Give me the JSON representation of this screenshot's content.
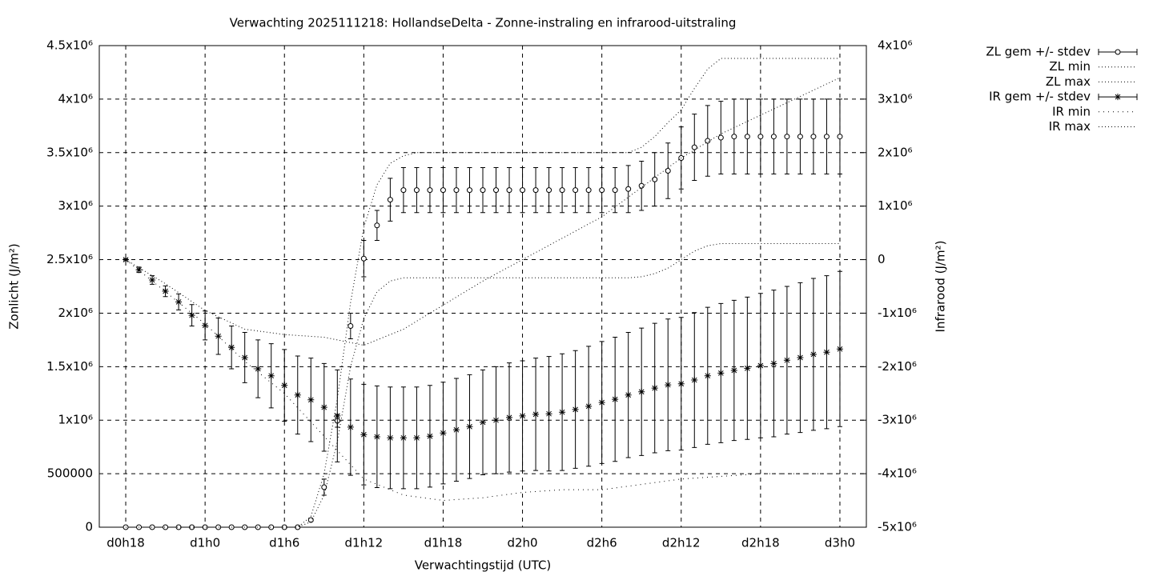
{
  "chart_data": {
    "type": "errorbar-line",
    "title": "Verwachting 2025111218: HollandseDelta - Zonne-instraling en infrarood-uitstraling",
    "xlabel": "Verwachtingstijd (UTC)",
    "ylabel": "Zonlicht (J/m²)",
    "y2label": "Infrarood (J/m²)",
    "x": [
      18,
      19,
      20,
      21,
      22,
      23,
      24,
      25,
      26,
      27,
      28,
      29,
      30,
      31,
      32,
      33,
      34,
      35,
      36,
      37,
      38,
      39,
      40,
      41,
      42,
      43,
      44,
      45,
      46,
      47,
      48,
      49,
      50,
      51,
      52,
      53,
      54,
      55,
      56,
      57,
      58,
      59,
      60,
      61,
      62,
      63,
      64,
      65,
      66,
      67,
      68,
      69,
      70,
      71,
      72
    ],
    "xlim": [
      16,
      74
    ],
    "xticks": [
      {
        "value": 18,
        "label": "d0h18"
      },
      {
        "value": 24,
        "label": "d1h0"
      },
      {
        "value": 30,
        "label": "d1h6"
      },
      {
        "value": 36,
        "label": "d1h12"
      },
      {
        "value": 42,
        "label": "d1h18"
      },
      {
        "value": 48,
        "label": "d2h0"
      },
      {
        "value": 54,
        "label": "d2h6"
      },
      {
        "value": 60,
        "label": "d2h12"
      },
      {
        "value": 66,
        "label": "d2h18"
      },
      {
        "value": 72,
        "label": "d3h0"
      }
    ],
    "ylim": [
      0,
      4500000
    ],
    "yticks": [
      0,
      500000,
      {
        "value": 1000000,
        "label": "1x10⁶"
      },
      {
        "value": 1500000,
        "label": "1.5x10⁶"
      },
      {
        "value": 2000000,
        "label": "2x10⁶"
      },
      {
        "value": 2500000,
        "label": "2.5x10⁶"
      },
      {
        "value": 3000000,
        "label": "3x10⁶"
      },
      {
        "value": 3500000,
        "label": "3.5x10⁶"
      },
      {
        "value": 4000000,
        "label": "4x10⁶"
      },
      {
        "value": 4500000,
        "label": "4.5x10⁶"
      }
    ],
    "y2lim": [
      -5000000,
      4000000
    ],
    "y2ticks": [
      {
        "value": -5000000,
        "label": "-5x10⁶"
      },
      {
        "value": -4000000,
        "label": "-4x10⁶"
      },
      {
        "value": -3000000,
        "label": "-3x10⁶"
      },
      {
        "value": -2000000,
        "label": "-2x10⁶"
      },
      {
        "value": -1000000,
        "label": "-1x10⁶"
      },
      0,
      {
        "value": 1000000,
        "label": "1x10⁶"
      },
      {
        "value": 2000000,
        "label": "2x10⁶"
      },
      {
        "value": 3000000,
        "label": "3x10⁶"
      },
      {
        "value": 4000000,
        "label": "4x10⁶"
      }
    ],
    "grid": true,
    "legend": "outside-right",
    "series": [
      {
        "name": "ZL gem +/- stdev",
        "color": "#000000",
        "style": "errorbars",
        "marker": "circle",
        "axis": "y",
        "values": [
          0,
          0,
          0,
          0,
          0,
          0,
          0,
          0,
          0,
          0,
          0,
          0,
          0,
          0,
          67000,
          374000,
          994000,
          1880000,
          2510000,
          2820000,
          3060000,
          3150000,
          3150000,
          3150000,
          3150000,
          3150000,
          3150000,
          3150000,
          3150000,
          3150000,
          3150000,
          3150000,
          3150000,
          3150000,
          3150000,
          3150000,
          3150000,
          3150000,
          3160000,
          3190000,
          3250000,
          3330000,
          3450000,
          3550000,
          3610000,
          3640000,
          3650000,
          3650000,
          3650000,
          3650000,
          3650000,
          3650000,
          3650000,
          3650000,
          3650000
        ],
        "errors": [
          0,
          0,
          0,
          0,
          0,
          0,
          0,
          0,
          0,
          0,
          0,
          0,
          0,
          0,
          10000,
          75000,
          60000,
          120000,
          170000,
          140000,
          200000,
          210000,
          210000,
          210000,
          210000,
          210000,
          210000,
          210000,
          210000,
          210000,
          210000,
          210000,
          210000,
          210000,
          210000,
          210000,
          210000,
          210000,
          220000,
          230000,
          250000,
          260000,
          290000,
          310000,
          330000,
          340000,
          350000,
          350000,
          350000,
          350000,
          350000,
          350000,
          350000,
          350000,
          350000
        ]
      },
      {
        "name": "ZL min",
        "color": "#000000",
        "style": "dotted",
        "axis": "y",
        "x": [
          18,
          31,
          32,
          33,
          34,
          35,
          36,
          37,
          38,
          39,
          56,
          57,
          58,
          59,
          60,
          61,
          62,
          63,
          72
        ],
        "values": [
          0,
          0,
          50000,
          300000,
          800000,
          1500000,
          1950000,
          2200000,
          2300000,
          2330000,
          2330000,
          2340000,
          2370000,
          2420000,
          2500000,
          2580000,
          2630000,
          2650000,
          2650000
        ]
      },
      {
        "name": "ZL max",
        "color": "#000000",
        "style": "dotted",
        "axis": "y",
        "x": [
          18,
          31,
          32,
          33,
          34,
          35,
          36,
          37,
          38,
          39,
          40,
          56,
          57,
          58,
          59,
          60,
          61,
          62,
          63,
          72
        ],
        "values": [
          0,
          0,
          100000,
          500000,
          1200000,
          2100000,
          2800000,
          3200000,
          3400000,
          3470000,
          3500000,
          3500000,
          3550000,
          3650000,
          3780000,
          3900000,
          4100000,
          4280000,
          4380000,
          4380000
        ]
      },
      {
        "name": "IR gem +/- stdev",
        "color": "#000000",
        "style": "errorbars",
        "marker": "star",
        "axis": "y2",
        "values": [
          0,
          -190000,
          -380000,
          -590000,
          -790000,
          -1040000,
          -1230000,
          -1430000,
          -1640000,
          -1830000,
          -2040000,
          -2170000,
          -2350000,
          -2530000,
          -2620000,
          -2760000,
          -2920000,
          -3130000,
          -3270000,
          -3310000,
          -3330000,
          -3330000,
          -3330000,
          -3300000,
          -3240000,
          -3180000,
          -3120000,
          -3040000,
          -3000000,
          -2950000,
          -2920000,
          -2890000,
          -2880000,
          -2850000,
          -2800000,
          -2740000,
          -2670000,
          -2610000,
          -2530000,
          -2470000,
          -2400000,
          -2340000,
          -2320000,
          -2250000,
          -2170000,
          -2120000,
          -2070000,
          -2030000,
          -1980000,
          -1940000,
          -1880000,
          -1830000,
          -1770000,
          -1730000,
          -1670000
        ],
        "errors": [
          20000,
          50000,
          80000,
          100000,
          150000,
          200000,
          270000,
          340000,
          400000,
          470000,
          540000,
          600000,
          670000,
          730000,
          780000,
          820000,
          860000,
          900000,
          940000,
          950000,
          950000,
          950000,
          950000,
          950000,
          950000,
          960000,
          970000,
          980000,
          1000000,
          1020000,
          1030000,
          1050000,
          1070000,
          1090000,
          1100000,
          1120000,
          1140000,
          1160000,
          1170000,
          1190000,
          1210000,
          1230000,
          1240000,
          1260000,
          1280000,
          1300000,
          1310000,
          1330000,
          1350000,
          1370000,
          1380000,
          1400000,
          1420000,
          1430000,
          1450000
        ]
      },
      {
        "name": "IR min",
        "color": "#000000",
        "style": "dotted-sparse",
        "axis": "y2",
        "x": [
          18,
          21,
          24,
          27,
          30,
          33,
          36,
          39,
          42,
          45,
          48,
          51,
          54,
          57,
          60,
          63,
          66,
          69,
          72
        ],
        "values": [
          0,
          -600000,
          -1200000,
          -1900000,
          -2500000,
          -3300000,
          -4100000,
          -4400000,
          -4500000,
          -4450000,
          -4350000,
          -4300000,
          -4300000,
          -4200000,
          -4100000,
          -4050000,
          -4000000,
          -4000000,
          -4000000
        ]
      },
      {
        "name": "IR max",
        "color": "#000000",
        "style": "dotted",
        "axis": "y2",
        "x": [
          18,
          21,
          24,
          27,
          30,
          33,
          36,
          39,
          42,
          45,
          48,
          51,
          54,
          57,
          60,
          63,
          66,
          69,
          72
        ],
        "values": [
          0,
          -450000,
          -950000,
          -1300000,
          -1400000,
          -1450000,
          -1600000,
          -1300000,
          -850000,
          -400000,
          0,
          400000,
          800000,
          1350000,
          1900000,
          2350000,
          2700000,
          3050000,
          3400000
        ]
      }
    ]
  }
}
